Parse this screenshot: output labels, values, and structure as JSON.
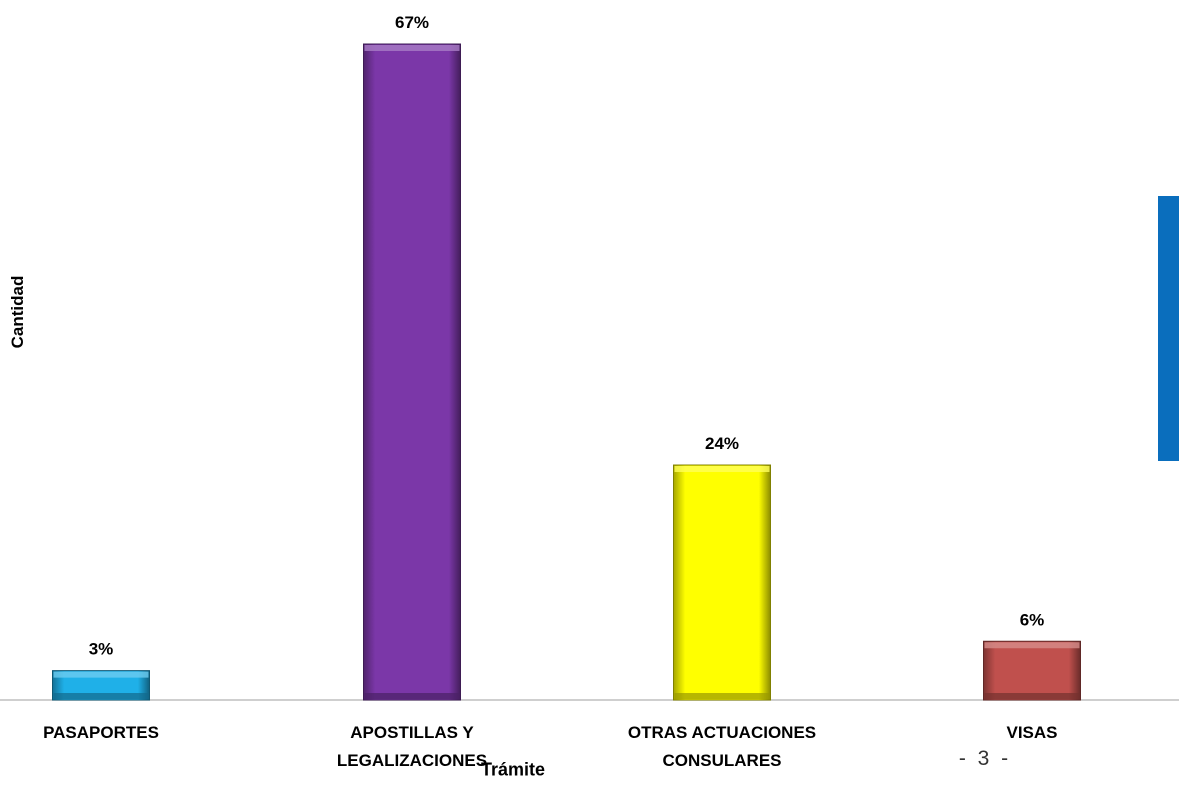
{
  "chart_data": {
    "type": "bar",
    "categories": [
      "PASAPORTES",
      "APOSTILLAS Y\nLEGALIZACIONES",
      "OTRAS ACTUACIONES\nCONSULARES",
      "VISAS"
    ],
    "values": [
      3,
      67,
      24,
      6
    ],
    "data_labels": [
      "3%",
      "67%",
      "24%",
      "6%"
    ],
    "bar_colors": [
      "#1fb0e8",
      "#7b37a8",
      "#ffff00",
      "#c0504d"
    ],
    "unit": "%",
    "xlabel": "Trámite",
    "ylabel": "Cantidad",
    "ylim": [
      0,
      67
    ],
    "grid": false,
    "legend": "none"
  },
  "page": {
    "number": "- 3 -",
    "side_band_color": "#0a6ebd"
  }
}
